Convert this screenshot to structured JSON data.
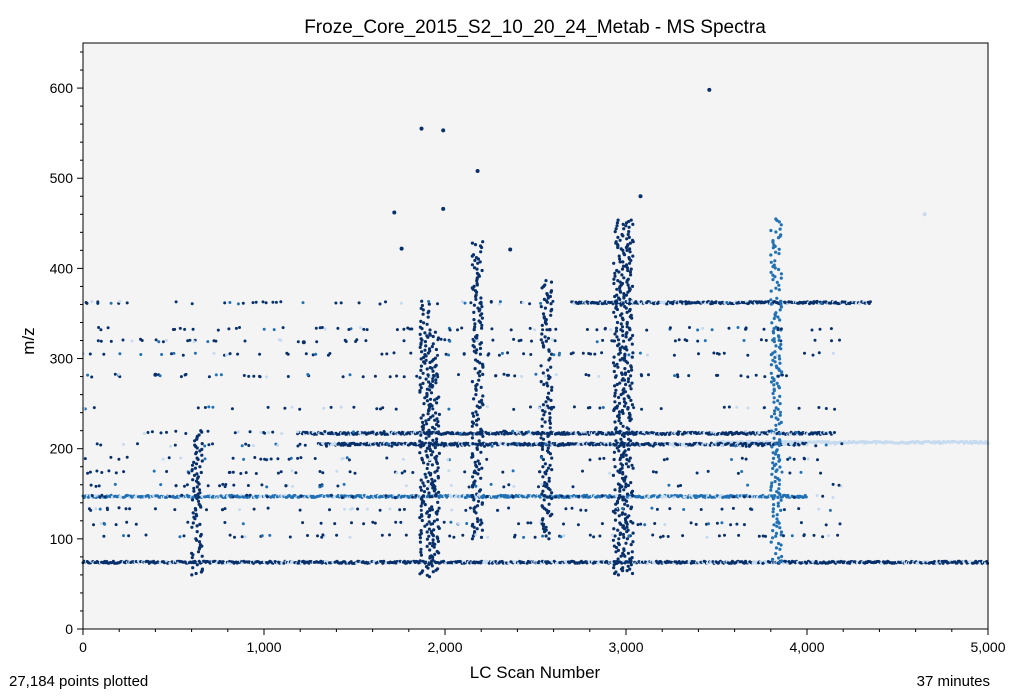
{
  "chart_data": {
    "type": "scatter",
    "title": "Froze_Core_2015_S2_10_20_24_Metab - MS Spectra",
    "xlabel": "LC Scan Number",
    "ylabel": "m/z",
    "xlim": [
      0,
      5000
    ],
    "ylim": [
      0,
      650
    ],
    "x_ticks": [
      0,
      1000,
      2000,
      3000,
      4000,
      5000
    ],
    "x_tick_labels": [
      "0",
      "1,000",
      "2,000",
      "3,000",
      "4,000",
      "5,000"
    ],
    "y_ticks": [
      0,
      100,
      200,
      300,
      400,
      500,
      600
    ],
    "y_tick_labels": [
      "0",
      "100",
      "200",
      "300",
      "400",
      "500",
      "600"
    ],
    "grid": false,
    "point_count_label": "27,184 points plotted",
    "duration_label": "37 minutes",
    "colors": {
      "plot_background": "#f4f4f4",
      "intensity_high": "#08306b",
      "intensity_mid": "#2171b5",
      "intensity_low": "#c6dbef"
    },
    "bands": [
      {
        "mz": 74,
        "x_start": 0,
        "x_end": 5000,
        "intensity": "high"
      },
      {
        "mz": 207,
        "x_start": 3500,
        "x_end": 5000,
        "intensity": "low"
      },
      {
        "mz": 217,
        "x_start": 1200,
        "x_end": 4150,
        "intensity": "high"
      },
      {
        "mz": 205,
        "x_start": 1300,
        "x_end": 4000,
        "intensity": "high"
      },
      {
        "mz": 147,
        "x_start": 0,
        "x_end": 4000,
        "intensity": "mid"
      },
      {
        "mz": 362,
        "x_start": 2700,
        "x_end": 4350,
        "intensity": "high"
      }
    ],
    "columns": [
      {
        "scan": 1890,
        "mz_min": 58,
        "mz_max": 368,
        "intensity": "high"
      },
      {
        "scan": 1940,
        "mz_min": 62,
        "mz_max": 330,
        "intensity": "high"
      },
      {
        "scan": 2960,
        "mz_min": 60,
        "mz_max": 455,
        "intensity": "high"
      },
      {
        "scan": 3010,
        "mz_min": 60,
        "mz_max": 455,
        "intensity": "high"
      },
      {
        "scan": 3830,
        "mz_min": 74,
        "mz_max": 455,
        "intensity": "mid"
      },
      {
        "scan": 630,
        "mz_min": 60,
        "mz_max": 220,
        "intensity": "high"
      },
      {
        "scan": 2560,
        "mz_min": 100,
        "mz_max": 390,
        "intensity": "high"
      },
      {
        "scan": 2180,
        "mz_min": 100,
        "mz_max": 430,
        "intensity": "high"
      }
    ],
    "notable_points": [
      {
        "scan": 3460,
        "mz": 598
      },
      {
        "scan": 1870,
        "mz": 555
      },
      {
        "scan": 1990,
        "mz": 553
      },
      {
        "scan": 2180,
        "mz": 508
      },
      {
        "scan": 3080,
        "mz": 480
      },
      {
        "scan": 1990,
        "mz": 466
      },
      {
        "scan": 1720,
        "mz": 462
      },
      {
        "scan": 4650,
        "mz": 460
      },
      {
        "scan": 1760,
        "mz": 422
      },
      {
        "scan": 2360,
        "mz": 421
      },
      {
        "scan": 400,
        "mz": 282
      },
      {
        "scan": 1220,
        "mz": 318
      }
    ]
  }
}
